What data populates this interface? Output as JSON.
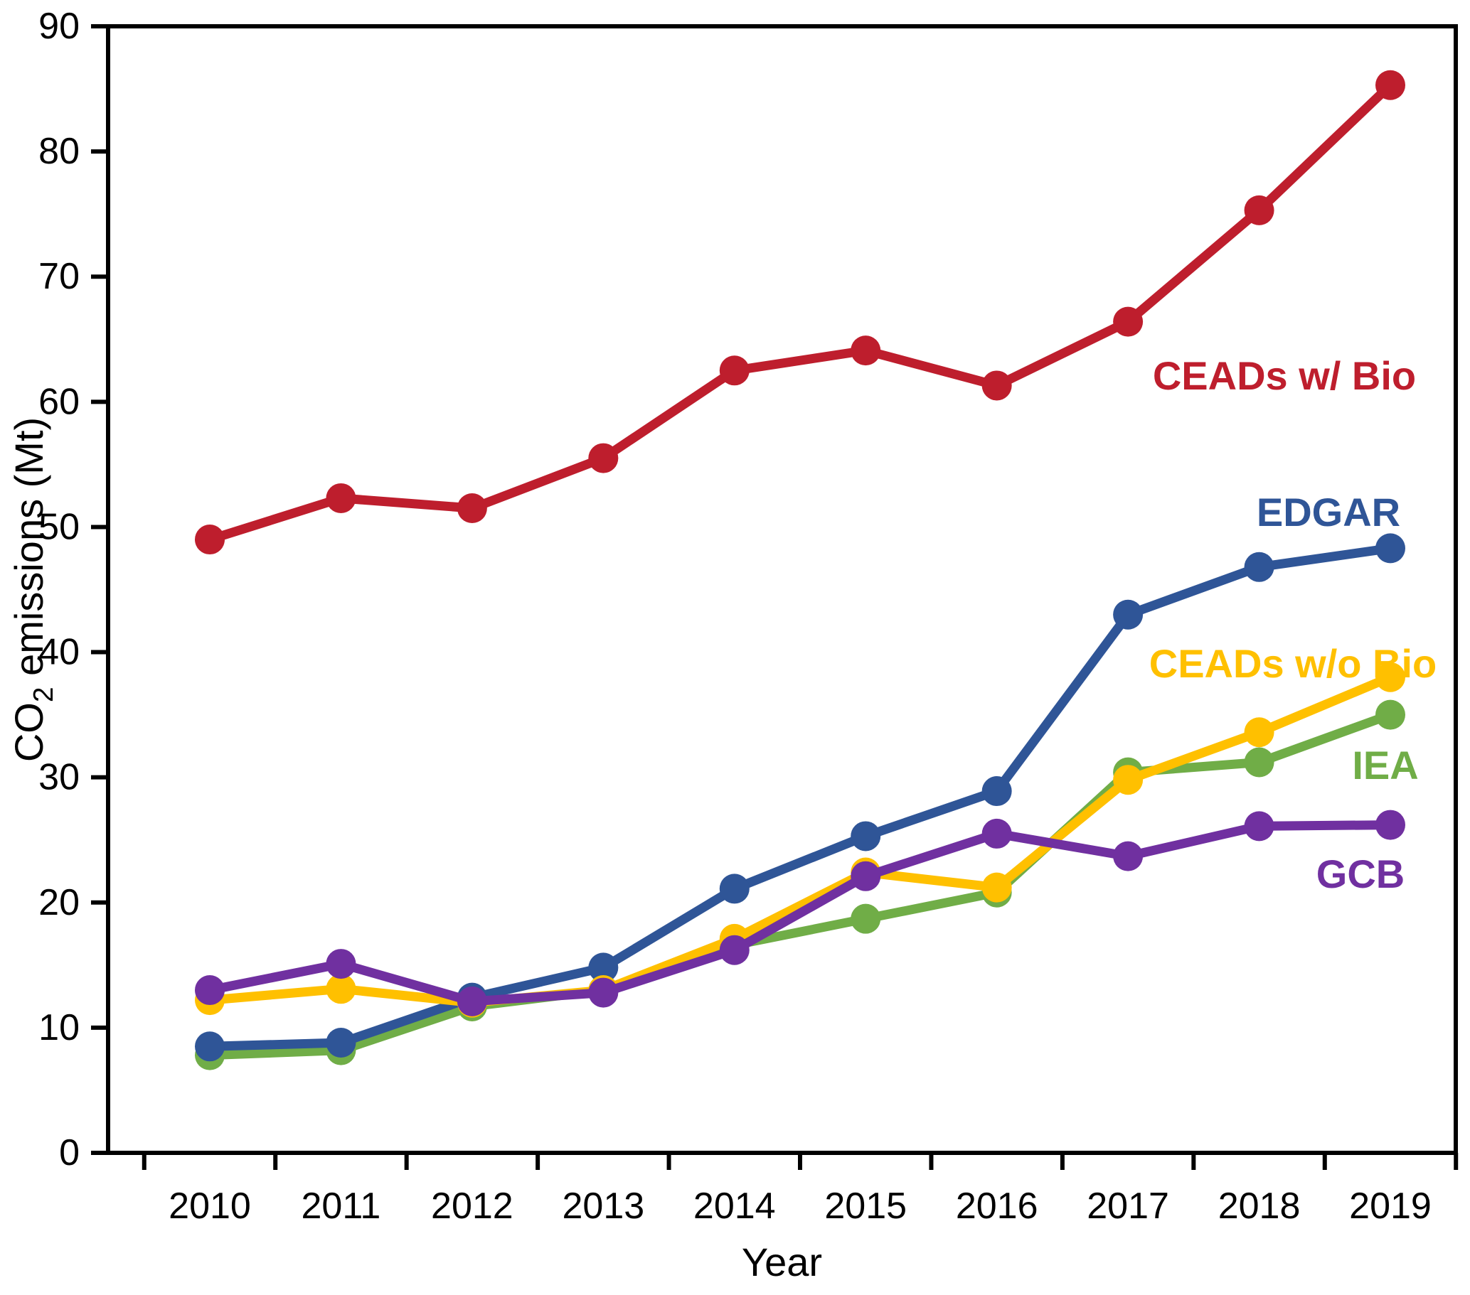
{
  "figure": {
    "background": "#ffffff",
    "frame_color": "#000000"
  },
  "chart_data": {
    "type": "line",
    "title": "",
    "xlabel": "Year",
    "ylabel": "CO2 emissions (Mt)",
    "ylabel_parts": {
      "prefix": "CO",
      "subscript": "2",
      "suffix": " emissions (Mt)"
    },
    "x": [
      2010,
      2011,
      2012,
      2013,
      2014,
      2015,
      2016,
      2017,
      2018,
      2019
    ],
    "xtick_labels": [
      "2010",
      "2011",
      "2012",
      "2013",
      "2014",
      "2015",
      "2016",
      "2017",
      "2018",
      "2019"
    ],
    "ylim": [
      0,
      90
    ],
    "ytick_step": 10,
    "ytick_labels": [
      "0",
      "10",
      "20",
      "30",
      "40",
      "50",
      "60",
      "70",
      "80",
      "90"
    ],
    "grid": false,
    "legend_position": "inline-right-labels",
    "marker": "circle",
    "series": [
      {
        "name": "CEADs w/ Bio",
        "color": "#BE1E2D",
        "values": [
          49.0,
          52.3,
          51.5,
          55.5,
          62.5,
          64.1,
          61.3,
          66.4,
          75.3,
          85.3
        ]
      },
      {
        "name": "EDGAR",
        "color": "#2F5597",
        "values": [
          8.5,
          8.8,
          12.4,
          14.8,
          21.1,
          25.3,
          28.9,
          43.0,
          46.8,
          48.3
        ]
      },
      {
        "name": "CEADs w/o Bio",
        "color": "#FFC000",
        "values": [
          12.2,
          13.1,
          12.0,
          13.0,
          17.1,
          22.4,
          21.2,
          29.8,
          33.6,
          38.0
        ]
      },
      {
        "name": "IEA",
        "color": "#70AD47",
        "values": [
          7.8,
          8.2,
          11.7,
          13.0,
          16.6,
          18.7,
          20.8,
          30.4,
          31.2,
          35.0
        ]
      },
      {
        "name": "GCB",
        "color": "#7030A0",
        "values": [
          13.0,
          15.1,
          12.1,
          12.8,
          16.2,
          22.1,
          25.5,
          23.7,
          26.1,
          26.2
        ]
      }
    ]
  }
}
